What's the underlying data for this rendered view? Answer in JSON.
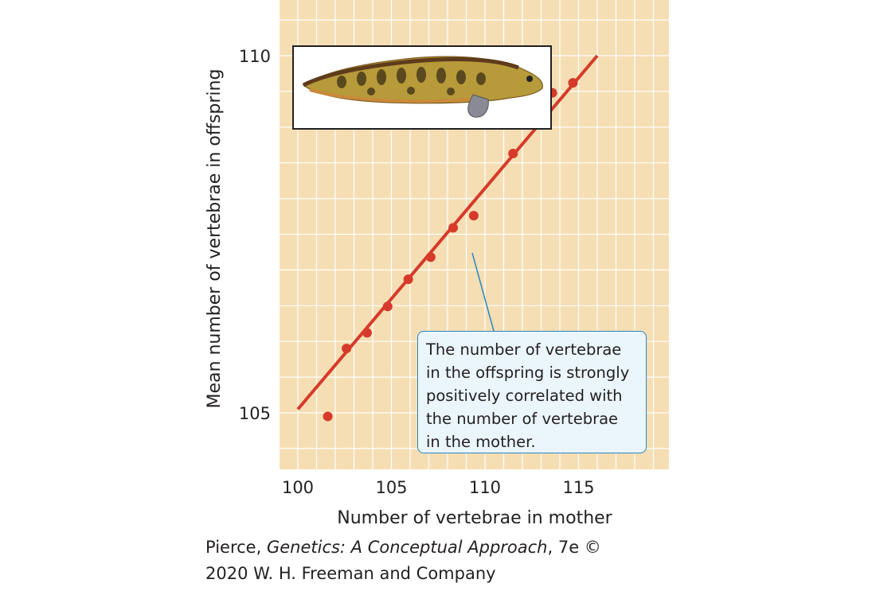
{
  "chart_data": {
    "type": "scatter",
    "title": "",
    "xlabel": "Number of vertebrae in mother",
    "ylabel": "Mean number of vertebrae in offspring",
    "xlim": [
      99.5,
      116.5
    ],
    "ylim": [
      104.2,
      110.6
    ],
    "x_ticks": [
      100,
      105,
      110,
      115
    ],
    "y_ticks": [
      105,
      110
    ],
    "grid": true,
    "points": [
      {
        "x": 101.6,
        "y": 104.95
      },
      {
        "x": 102.6,
        "y": 105.9
      },
      {
        "x": 103.7,
        "y": 106.12
      },
      {
        "x": 104.8,
        "y": 106.49
      },
      {
        "x": 105.9,
        "y": 106.87
      },
      {
        "x": 107.1,
        "y": 107.18
      },
      {
        "x": 108.3,
        "y": 107.59
      },
      {
        "x": 109.4,
        "y": 107.76
      },
      {
        "x": 111.5,
        "y": 108.63
      },
      {
        "x": 113.6,
        "y": 109.48
      },
      {
        "x": 114.7,
        "y": 109.62
      }
    ],
    "trendline": {
      "x": [
        100.0,
        116.0
      ],
      "y": [
        105.05,
        110.0
      ]
    },
    "colors": {
      "background": "#f5deb3",
      "grid": "#ffffff",
      "points": "#d63a2a",
      "line": "#d63a2a"
    }
  },
  "annotation": {
    "lines": [
      "The number of vertebrae",
      "in the offspring is strongly",
      "positively correlated with",
      "the number of vertebrae",
      "in the mother."
    ],
    "border_color": "#2a86c4"
  },
  "credit": {
    "author": "Pierce, ",
    "book": "Genetics: A Conceptual Approach",
    "edition": ", 7e ©",
    "line2": "2020 W. H. Freeman and Company"
  }
}
